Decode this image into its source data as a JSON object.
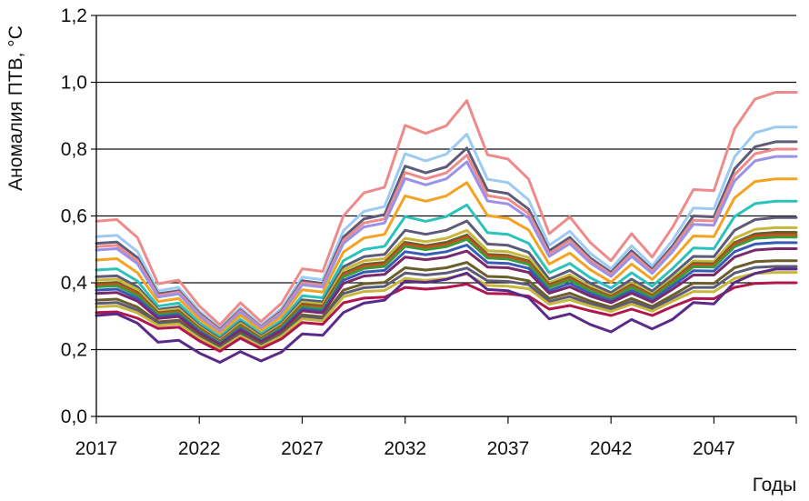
{
  "chart_data": {
    "type": "line",
    "xlabel": "Годы",
    "ylabel": "Аномалия ПТВ, °С",
    "ylim": [
      0,
      1.2
    ],
    "xlim": [
      2017,
      2051
    ],
    "yticks": [
      "0,0",
      "0,2",
      "0,4",
      "0,6",
      "0,8",
      "1,0",
      "1,2"
    ],
    "xticks": [
      "2017",
      "2022",
      "2027",
      "2032",
      "2037",
      "2042",
      "2047"
    ],
    "grid": "horizontal",
    "legend": "none",
    "x": [
      2017,
      2018,
      2019,
      2020,
      2021,
      2022,
      2023,
      2024,
      2025,
      2026,
      2027,
      2028,
      2029,
      2030,
      2031,
      2032,
      2033,
      2034,
      2035,
      2036,
      2037,
      2038,
      2039,
      2040,
      2041,
      2042,
      2043,
      2044,
      2045,
      2046,
      2047,
      2048,
      2049,
      2050,
      2051
    ],
    "series": [
      {
        "color": "#ee8a8a",
        "values": [
          0.584,
          0.589,
          0.535,
          0.397,
          0.408,
          0.331,
          0.274,
          0.34,
          0.284,
          0.339,
          0.442,
          0.434,
          0.6,
          0.669,
          0.686,
          0.871,
          0.847,
          0.87,
          0.945,
          0.783,
          0.77,
          0.71,
          0.547,
          0.597,
          0.52,
          0.466,
          0.547,
          0.477,
          0.567,
          0.679,
          0.676,
          0.861,
          0.95,
          0.97,
          0.97
        ]
      },
      {
        "color": "#9ccaf0",
        "values": [
          0.538,
          0.542,
          0.493,
          0.376,
          0.386,
          0.316,
          0.264,
          0.325,
          0.273,
          0.323,
          0.417,
          0.409,
          0.556,
          0.614,
          0.628,
          0.786,
          0.765,
          0.785,
          0.845,
          0.71,
          0.7,
          0.648,
          0.512,
          0.554,
          0.488,
          0.442,
          0.511,
          0.451,
          0.528,
          0.624,
          0.621,
          0.777,
          0.849,
          0.866,
          0.866
        ]
      },
      {
        "color": "#5c5c7a",
        "values": [
          0.518,
          0.522,
          0.475,
          0.367,
          0.376,
          0.309,
          0.26,
          0.319,
          0.268,
          0.316,
          0.406,
          0.398,
          0.537,
          0.591,
          0.604,
          0.749,
          0.729,
          0.747,
          0.803,
          0.677,
          0.667,
          0.62,
          0.496,
          0.536,
          0.474,
          0.431,
          0.496,
          0.44,
          0.511,
          0.6,
          0.597,
          0.741,
          0.807,
          0.822,
          0.822
        ]
      },
      {
        "color": "#ee8a8a",
        "values": [
          0.508,
          0.512,
          0.466,
          0.362,
          0.372,
          0.305,
          0.257,
          0.316,
          0.266,
          0.312,
          0.4,
          0.393,
          0.527,
          0.579,
          0.591,
          0.73,
          0.711,
          0.729,
          0.782,
          0.661,
          0.651,
          0.607,
          0.487,
          0.527,
          0.467,
          0.425,
          0.488,
          0.434,
          0.503,
          0.587,
          0.585,
          0.723,
          0.786,
          0.8,
          0.8
        ]
      },
      {
        "color": "#9a92e8",
        "values": [
          0.498,
          0.502,
          0.457,
          0.357,
          0.367,
          0.301,
          0.253,
          0.313,
          0.263,
          0.308,
          0.394,
          0.387,
          0.518,
          0.567,
          0.579,
          0.712,
          0.693,
          0.711,
          0.762,
          0.645,
          0.636,
          0.594,
          0.479,
          0.517,
          0.459,
          0.419,
          0.479,
          0.428,
          0.494,
          0.575,
          0.572,
          0.705,
          0.765,
          0.778,
          0.778
        ]
      },
      {
        "color": "#f4a221",
        "values": [
          0.468,
          0.472,
          0.43,
          0.344,
          0.353,
          0.291,
          0.246,
          0.303,
          0.256,
          0.299,
          0.379,
          0.372,
          0.492,
          0.534,
          0.545,
          0.66,
          0.644,
          0.66,
          0.7,
          0.601,
          0.593,
          0.558,
          0.456,
          0.489,
          0.439,
          0.402,
          0.456,
          0.41,
          0.47,
          0.54,
          0.538,
          0.654,
          0.703,
          0.711,
          0.711
        ]
      },
      {
        "color": "#2cc2bc",
        "values": [
          0.438,
          0.442,
          0.405,
          0.33,
          0.339,
          0.28,
          0.238,
          0.291,
          0.247,
          0.288,
          0.361,
          0.355,
          0.466,
          0.5,
          0.509,
          0.598,
          0.584,
          0.598,
          0.633,
          0.55,
          0.545,
          0.518,
          0.43,
          0.458,
          0.415,
          0.384,
          0.43,
          0.39,
          0.443,
          0.504,
          0.502,
          0.598,
          0.637,
          0.644,
          0.644
        ]
      },
      {
        "color": "#5c5c7a",
        "values": [
          0.418,
          0.421,
          0.388,
          0.32,
          0.328,
          0.272,
          0.232,
          0.283,
          0.241,
          0.28,
          0.349,
          0.343,
          0.448,
          0.478,
          0.485,
          0.557,
          0.545,
          0.557,
          0.585,
          0.516,
          0.512,
          0.491,
          0.411,
          0.437,
          0.398,
          0.371,
          0.411,
          0.375,
          0.425,
          0.479,
          0.478,
          0.557,
          0.589,
          0.595,
          0.595
        ]
      },
      {
        "color": "#c7b73a",
        "values": [
          0.408,
          0.411,
          0.38,
          0.315,
          0.322,
          0.268,
          0.228,
          0.278,
          0.237,
          0.275,
          0.342,
          0.336,
          0.438,
          0.466,
          0.472,
          0.533,
          0.523,
          0.533,
          0.557,
          0.496,
          0.493,
          0.475,
          0.4,
          0.424,
          0.388,
          0.363,
          0.4,
          0.366,
          0.414,
          0.465,
          0.464,
          0.533,
          0.56,
          0.565,
          0.565
        ]
      },
      {
        "color": "#6a5f2a",
        "values": [
          0.398,
          0.401,
          0.371,
          0.31,
          0.316,
          0.264,
          0.225,
          0.273,
          0.234,
          0.271,
          0.336,
          0.33,
          0.428,
          0.455,
          0.461,
          0.521,
          0.511,
          0.521,
          0.543,
          0.485,
          0.482,
          0.465,
          0.394,
          0.416,
          0.383,
          0.359,
          0.394,
          0.362,
          0.408,
          0.458,
          0.457,
          0.52,
          0.546,
          0.551,
          0.551
        ]
      },
      {
        "color": "#d94a1c",
        "values": [
          0.393,
          0.396,
          0.367,
          0.307,
          0.313,
          0.261,
          0.223,
          0.27,
          0.232,
          0.268,
          0.332,
          0.326,
          0.423,
          0.449,
          0.455,
          0.515,
          0.505,
          0.514,
          0.536,
          0.48,
          0.477,
          0.46,
          0.39,
          0.412,
          0.379,
          0.356,
          0.39,
          0.359,
          0.404,
          0.453,
          0.452,
          0.514,
          0.539,
          0.543,
          0.543
        ]
      },
      {
        "color": "#3a9c3a",
        "values": [
          0.388,
          0.391,
          0.362,
          0.304,
          0.31,
          0.258,
          0.221,
          0.267,
          0.23,
          0.266,
          0.328,
          0.322,
          0.418,
          0.443,
          0.449,
          0.509,
          0.499,
          0.508,
          0.53,
          0.474,
          0.471,
          0.455,
          0.386,
          0.408,
          0.376,
          0.353,
          0.386,
          0.356,
          0.4,
          0.448,
          0.447,
          0.508,
          0.533,
          0.537,
          0.537
        ]
      },
      {
        "color": "#3a5ab8",
        "values": [
          0.378,
          0.381,
          0.353,
          0.299,
          0.305,
          0.254,
          0.218,
          0.263,
          0.226,
          0.261,
          0.322,
          0.316,
          0.408,
          0.432,
          0.437,
          0.493,
          0.484,
          0.493,
          0.513,
          0.46,
          0.458,
          0.443,
          0.377,
          0.398,
          0.368,
          0.346,
          0.377,
          0.349,
          0.391,
          0.436,
          0.435,
          0.493,
          0.516,
          0.52,
          0.52
        ]
      },
      {
        "color": "#7a2a6a",
        "values": [
          0.368,
          0.371,
          0.345,
          0.293,
          0.299,
          0.25,
          0.214,
          0.258,
          0.223,
          0.257,
          0.316,
          0.31,
          0.398,
          0.42,
          0.425,
          0.477,
          0.469,
          0.477,
          0.495,
          0.447,
          0.445,
          0.431,
          0.369,
          0.388,
          0.36,
          0.34,
          0.369,
          0.342,
          0.381,
          0.423,
          0.423,
          0.477,
          0.498,
          0.502,
          0.502
        ]
      },
      {
        "color": "#6a5f2a",
        "values": [
          0.348,
          0.351,
          0.327,
          0.283,
          0.288,
          0.242,
          0.208,
          0.25,
          0.216,
          0.248,
          0.304,
          0.298,
          0.378,
          0.397,
          0.401,
          0.445,
          0.438,
          0.445,
          0.461,
          0.419,
          0.417,
          0.406,
          0.353,
          0.369,
          0.345,
          0.327,
          0.353,
          0.329,
          0.363,
          0.399,
          0.398,
          0.445,
          0.463,
          0.466,
          0.466
        ]
      },
      {
        "color": "#5c5c7a",
        "values": [
          0.338,
          0.341,
          0.318,
          0.278,
          0.282,
          0.238,
          0.205,
          0.246,
          0.213,
          0.244,
          0.298,
          0.292,
          0.368,
          0.385,
          0.389,
          0.429,
          0.423,
          0.429,
          0.444,
          0.406,
          0.404,
          0.394,
          0.344,
          0.359,
          0.337,
          0.321,
          0.344,
          0.322,
          0.354,
          0.386,
          0.386,
          0.429,
          0.446,
          0.449,
          0.449
        ]
      },
      {
        "color": "#c7b73a",
        "values": [
          0.328,
          0.331,
          0.31,
          0.272,
          0.277,
          0.234,
          0.201,
          0.241,
          0.209,
          0.24,
          0.292,
          0.286,
          0.358,
          0.374,
          0.377,
          0.413,
          0.407,
          0.413,
          0.426,
          0.392,
          0.39,
          0.382,
          0.336,
          0.349,
          0.33,
          0.314,
          0.336,
          0.315,
          0.345,
          0.374,
          0.373,
          0.413,
          0.428,
          0.431,
          0.431
        ]
      },
      {
        "color": "#b0174f",
        "values": [
          0.311,
          0.313,
          0.294,
          0.263,
          0.267,
          0.226,
          0.195,
          0.234,
          0.203,
          0.232,
          0.281,
          0.276,
          0.34,
          0.354,
          0.357,
          0.386,
          0.381,
          0.386,
          0.396,
          0.368,
          0.367,
          0.36,
          0.321,
          0.332,
          0.316,
          0.302,
          0.321,
          0.302,
          0.329,
          0.353,
          0.352,
          0.386,
          0.398,
          0.4,
          0.4
        ]
      },
      {
        "color": "#5a2a8a",
        "values": [
          0.302,
          0.307,
          0.279,
          0.222,
          0.228,
          0.19,
          0.162,
          0.194,
          0.166,
          0.193,
          0.247,
          0.243,
          0.311,
          0.339,
          0.348,
          0.405,
          0.401,
          0.41,
          0.429,
          0.38,
          0.376,
          0.355,
          0.292,
          0.307,
          0.275,
          0.253,
          0.29,
          0.262,
          0.291,
          0.341,
          0.337,
          0.401,
          0.428,
          0.441,
          0.441
        ]
      }
    ]
  }
}
